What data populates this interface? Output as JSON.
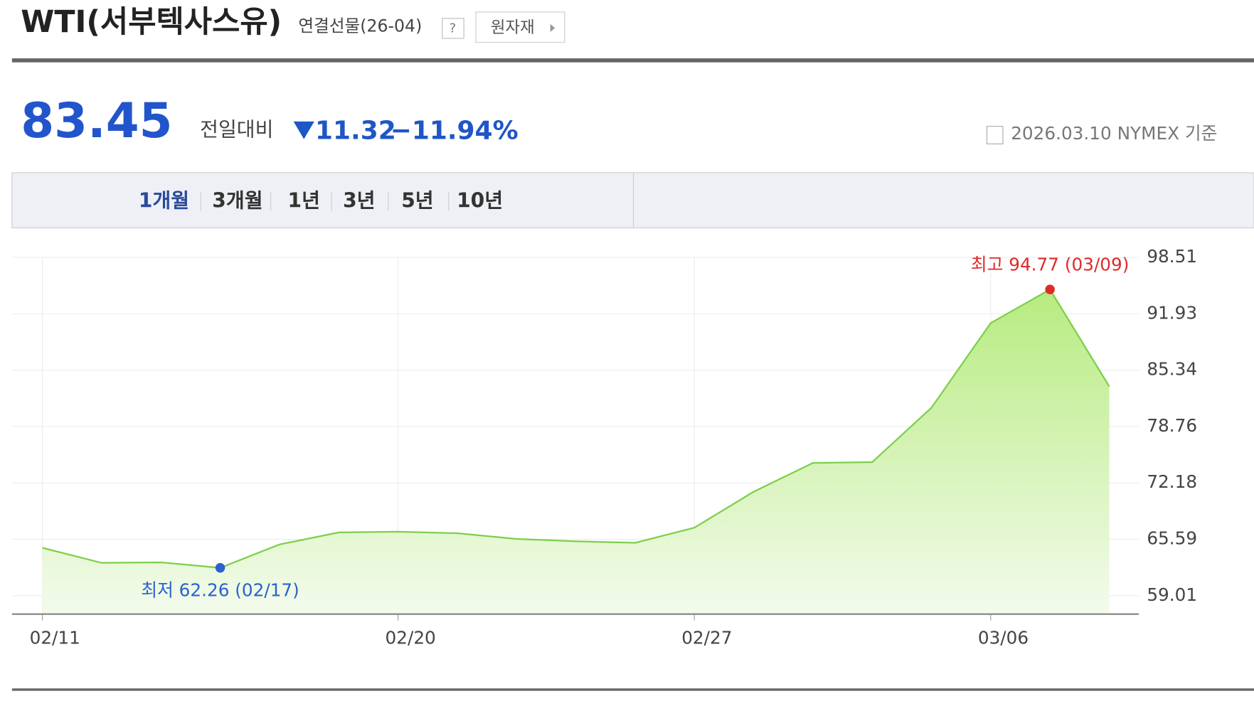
{
  "header": {
    "title": "WTI(서부텍사스유)",
    "subtitle": "연결선물(26-04)",
    "help": "?",
    "button": "원자재"
  },
  "quote": {
    "price": "83.45",
    "change_label": "전일대비",
    "change": "11.32",
    "change_pct": "−11.94%",
    "as_of": "2026.03.10 NYMEX 기준"
  },
  "tabs": [
    "1개월",
    "3개월",
    "1년",
    "3년",
    "5년",
    "10년"
  ],
  "chart_data": {
    "type": "area",
    "categories": [
      "02/11",
      null,
      null,
      null,
      null,
      null,
      "02/20",
      null,
      null,
      null,
      null,
      "02/27",
      null,
      null,
      null,
      null,
      "03/06",
      null,
      null
    ],
    "values": [
      64.6,
      62.84,
      62.9,
      62.26,
      64.99,
      66.39,
      66.48,
      66.3,
      65.64,
      65.36,
      65.18,
      66.95,
      71.15,
      74.51,
      74.6,
      80.96,
      90.85,
      94.77,
      83.45
    ],
    "color": "#7dcf4a",
    "ylim": [
      56.86,
      98.51
    ],
    "yticks": [
      98.51,
      91.93,
      85.34,
      78.76,
      72.18,
      65.59,
      59.01
    ],
    "grid": true,
    "annotations": [
      {
        "text": "최고 94.77 (03/09)",
        "index": 17,
        "color": "#e02a2a"
      },
      {
        "text": "최저 62.26 (02/17)",
        "index": 3,
        "color": "#2a62d0"
      }
    ]
  }
}
